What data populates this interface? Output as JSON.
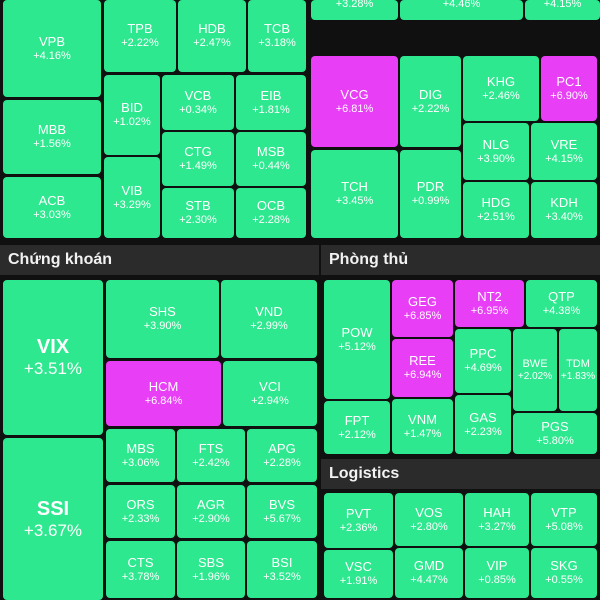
{
  "colors": {
    "up": "#2ee88f",
    "ceiling": "#e83ef5",
    "background": "#101010",
    "header_bg": "#2b2b2b"
  },
  "sections": {
    "chung_khoan": "Chứng khoán",
    "phong_thu": "Phòng thủ",
    "logistics": "Logistics"
  },
  "tiles": {
    "top_partial_1": {
      "ticker": "",
      "change": "+3.28%",
      "color": "up"
    },
    "top_partial_2": {
      "ticker": "",
      "change": "+4.46%",
      "color": "up"
    },
    "top_partial_3": {
      "ticker": "",
      "change": "+4.15%",
      "color": "up"
    },
    "VPB": {
      "ticker": "VPB",
      "change": "+4.16%",
      "color": "up"
    },
    "TPB": {
      "ticker": "TPB",
      "change": "+2.22%",
      "color": "up"
    },
    "HDB": {
      "ticker": "HDB",
      "change": "+2.47%",
      "color": "up"
    },
    "TCB": {
      "ticker": "TCB",
      "change": "+3.18%",
      "color": "up"
    },
    "MBB": {
      "ticker": "MBB",
      "change": "+1.56%",
      "color": "up"
    },
    "BID": {
      "ticker": "BID",
      "change": "+1.02%",
      "color": "up"
    },
    "VCB": {
      "ticker": "VCB",
      "change": "+0.34%",
      "color": "up"
    },
    "EIB": {
      "ticker": "EIB",
      "change": "+1.81%",
      "color": "up"
    },
    "CTG": {
      "ticker": "CTG",
      "change": "+1.49%",
      "color": "up"
    },
    "MSB": {
      "ticker": "MSB",
      "change": "+0.44%",
      "color": "up"
    },
    "ACB": {
      "ticker": "ACB",
      "change": "+3.03%",
      "color": "up"
    },
    "VIB": {
      "ticker": "VIB",
      "change": "+3.29%",
      "color": "up"
    },
    "STB": {
      "ticker": "STB",
      "change": "+2.30%",
      "color": "up"
    },
    "OCB": {
      "ticker": "OCB",
      "change": "+2.28%",
      "color": "up"
    },
    "VCG": {
      "ticker": "VCG",
      "change": "+6.81%",
      "color": "ceiling"
    },
    "DIG": {
      "ticker": "DIG",
      "change": "+2.22%",
      "color": "up"
    },
    "KHG": {
      "ticker": "KHG",
      "change": "+2.46%",
      "color": "up"
    },
    "PC1": {
      "ticker": "PC1",
      "change": "+6.90%",
      "color": "ceiling"
    },
    "NLG": {
      "ticker": "NLG",
      "change": "+3.90%",
      "color": "up"
    },
    "VRE": {
      "ticker": "VRE",
      "change": "+4.15%",
      "color": "up"
    },
    "TCH": {
      "ticker": "TCH",
      "change": "+3.45%",
      "color": "up"
    },
    "PDR": {
      "ticker": "PDR",
      "change": "+0.99%",
      "color": "up"
    },
    "HDG": {
      "ticker": "HDG",
      "change": "+2.51%",
      "color": "up"
    },
    "KDH": {
      "ticker": "KDH",
      "change": "+3.40%",
      "color": "up"
    },
    "VIX": {
      "ticker": "VIX",
      "change": "+3.51%",
      "color": "up"
    },
    "SHS": {
      "ticker": "SHS",
      "change": "+3.90%",
      "color": "up"
    },
    "VND": {
      "ticker": "VND",
      "change": "+2.99%",
      "color": "up"
    },
    "HCM": {
      "ticker": "HCM",
      "change": "+6.84%",
      "color": "ceiling"
    },
    "VCI": {
      "ticker": "VCI",
      "change": "+2.94%",
      "color": "up"
    },
    "SSI": {
      "ticker": "SSI",
      "change": "+3.67%",
      "color": "up"
    },
    "MBS": {
      "ticker": "MBS",
      "change": "+3.06%",
      "color": "up"
    },
    "FTS": {
      "ticker": "FTS",
      "change": "+2.42%",
      "color": "up"
    },
    "APG": {
      "ticker": "APG",
      "change": "+2.28%",
      "color": "up"
    },
    "ORS": {
      "ticker": "ORS",
      "change": "+2.33%",
      "color": "up"
    },
    "AGR": {
      "ticker": "AGR",
      "change": "+2.90%",
      "color": "up"
    },
    "BVS": {
      "ticker": "BVS",
      "change": "+5.67%",
      "color": "up"
    },
    "CTS": {
      "ticker": "CTS",
      "change": "+3.78%",
      "color": "up"
    },
    "SBS": {
      "ticker": "SBS",
      "change": "+1.96%",
      "color": "up"
    },
    "BSI": {
      "ticker": "BSI",
      "change": "+3.52%",
      "color": "up"
    },
    "POW": {
      "ticker": "POW",
      "change": "+5.12%",
      "color": "up"
    },
    "GEG": {
      "ticker": "GEG",
      "change": "+6.85%",
      "color": "ceiling"
    },
    "NT2": {
      "ticker": "NT2",
      "change": "+6.95%",
      "color": "ceiling"
    },
    "QTP": {
      "ticker": "QTP",
      "change": "+4.38%",
      "color": "up"
    },
    "REE": {
      "ticker": "REE",
      "change": "+6.94%",
      "color": "ceiling"
    },
    "PPC": {
      "ticker": "PPC",
      "change": "+4.69%",
      "color": "up"
    },
    "BWE": {
      "ticker": "BWE",
      "change": "+2.02%",
      "color": "up"
    },
    "TDM": {
      "ticker": "TDM",
      "change": "+1.83%",
      "color": "up"
    },
    "FPT": {
      "ticker": "FPT",
      "change": "+2.12%",
      "color": "up"
    },
    "VNM": {
      "ticker": "VNM",
      "change": "+1.47%",
      "color": "up"
    },
    "GAS": {
      "ticker": "GAS",
      "change": "+2.23%",
      "color": "up"
    },
    "PGS": {
      "ticker": "PGS",
      "change": "+5.80%",
      "color": "up"
    },
    "PVT": {
      "ticker": "PVT",
      "change": "+2.36%",
      "color": "up"
    },
    "VOS": {
      "ticker": "VOS",
      "change": "+2.80%",
      "color": "up"
    },
    "HAH": {
      "ticker": "HAH",
      "change": "+3.27%",
      "color": "up"
    },
    "VTP": {
      "ticker": "VTP",
      "change": "+5.08%",
      "color": "up"
    },
    "VSC": {
      "ticker": "VSC",
      "change": "+1.91%",
      "color": "up"
    },
    "GMD": {
      "ticker": "GMD",
      "change": "+4.47%",
      "color": "up"
    },
    "VIP": {
      "ticker": "VIP",
      "change": "+0.85%",
      "color": "up"
    },
    "SKG": {
      "ticker": "SKG",
      "change": "+0.55%",
      "color": "up"
    }
  }
}
